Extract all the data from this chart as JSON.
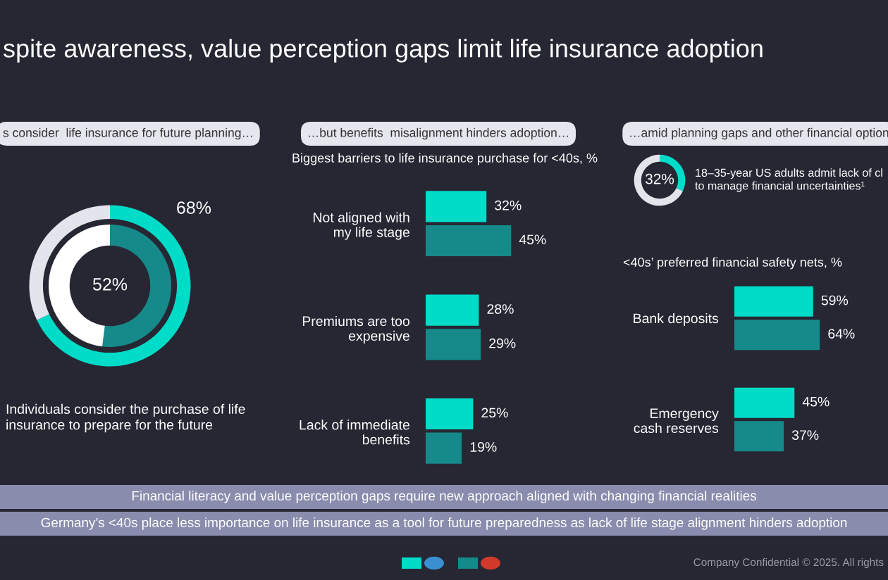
{
  "chart_data": [
    {
      "type": "other",
      "title": "spite awareness, value perception gaps limit life insurance adoption",
      "annotations": [
        "Financial literacy and value perception gaps require new approach aligned with changing financial realities",
        "Germany’s <40s place less importance on life insurance as a tool for future preparedness as lack of life stage alignment hinders adoption",
        "Company Confidential © 2025. All rights"
      ]
    },
    {
      "type": "donut",
      "title": "s consider  life insurance for future planning…",
      "categories": [
        null,
        null
      ],
      "series": [
        {
          "colors": [
            "#00dcc8",
            "#e4e4ec"
          ],
          "values": [
            68,
            32
          ],
          "value_labels": [
            "68%",
            null
          ]
        },
        {
          "colors": [
            "#168a8a",
            "#ffffff"
          ],
          "values": [
            52,
            48
          ],
          "value_labels": [
            "52%",
            null
          ]
        }
      ],
      "annotations": [
        "Individuals consider the purchase of life\ninsurance to prepare for the future"
      ]
    },
    {
      "type": "bar",
      "orientation": "horizontal",
      "title": "…but benefits  misalignment hinders adoption…",
      "subtitle": "Biggest barriers to life insurance purchase for <40s, %",
      "categories": [
        "Not aligned with\nmy life stage",
        "Premiums are too\nexpensive",
        "Lack of immediate\nbenefits"
      ],
      "tick_labels": "y",
      "series": [
        {
          "color": "#00dcc8",
          "values": [
            32,
            28,
            25
          ],
          "value_labels": [
            "32%",
            "28%",
            "25%"
          ]
        },
        {
          "color": "#168a8a",
          "values": [
            45,
            29,
            19
          ],
          "value_labels": [
            "45%",
            "29%",
            "19%"
          ]
        }
      ]
    },
    {
      "type": "donut",
      "title": "…amid planning gaps and other financial option",
      "categories": [
        null,
        null
      ],
      "colors": [
        "#00dcc8",
        "#e4e4ec"
      ],
      "values": [
        32,
        68
      ],
      "value_labels": [
        "32%",
        null
      ],
      "annotations": [
        "18–35-year US adults admit lack of cl\nto manage financial uncertainties¹"
      ]
    },
    {
      "type": "bar",
      "orientation": "horizontal",
      "subtitle": "<40s’ preferred financial safety nets, %",
      "categories": [
        "Bank deposits",
        "Emergency\ncash reserves"
      ],
      "tick_labels": "y",
      "series": [
        {
          "color": "#00dcc8",
          "values": [
            59,
            45
          ],
          "value_labels": [
            "59%",
            "45%"
          ]
        },
        {
          "color": "#168a8a",
          "values": [
            64,
            37
          ],
          "value_labels": [
            "64%",
            "37%"
          ]
        }
      ]
    }
  ]
}
